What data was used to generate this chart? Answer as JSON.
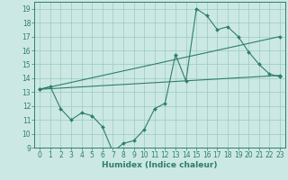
{
  "title": "",
  "xlabel": "Humidex (Indice chaleur)",
  "background_color": "#cce8e4",
  "line_color": "#2e7d6e",
  "grid_color": "#99ccbb",
  "xlim": [
    -0.5,
    23.5
  ],
  "ylim": [
    9,
    19.5
  ],
  "xticks": [
    0,
    1,
    2,
    3,
    4,
    5,
    6,
    7,
    8,
    9,
    10,
    11,
    12,
    13,
    14,
    15,
    16,
    17,
    18,
    19,
    20,
    21,
    22,
    23
  ],
  "yticks": [
    9,
    10,
    11,
    12,
    13,
    14,
    15,
    16,
    17,
    18,
    19
  ],
  "line1_x": [
    0,
    1,
    2,
    3,
    4,
    5,
    6,
    7,
    8,
    9,
    10,
    11,
    12,
    13,
    14,
    15,
    16,
    17,
    18,
    19,
    20,
    21,
    22,
    23
  ],
  "line1_y": [
    13.2,
    13.4,
    11.8,
    11.0,
    11.5,
    11.3,
    10.5,
    8.7,
    9.3,
    9.5,
    10.3,
    11.8,
    12.2,
    15.7,
    13.8,
    19.0,
    18.5,
    17.5,
    17.7,
    17.0,
    15.9,
    15.0,
    14.3,
    14.1
  ],
  "line2_x": [
    0,
    23
  ],
  "line2_y": [
    13.2,
    14.2
  ],
  "line3_x": [
    0,
    23
  ],
  "line3_y": [
    13.2,
    17.0
  ],
  "tick_fontsize": 5.5,
  "xlabel_fontsize": 6.5
}
